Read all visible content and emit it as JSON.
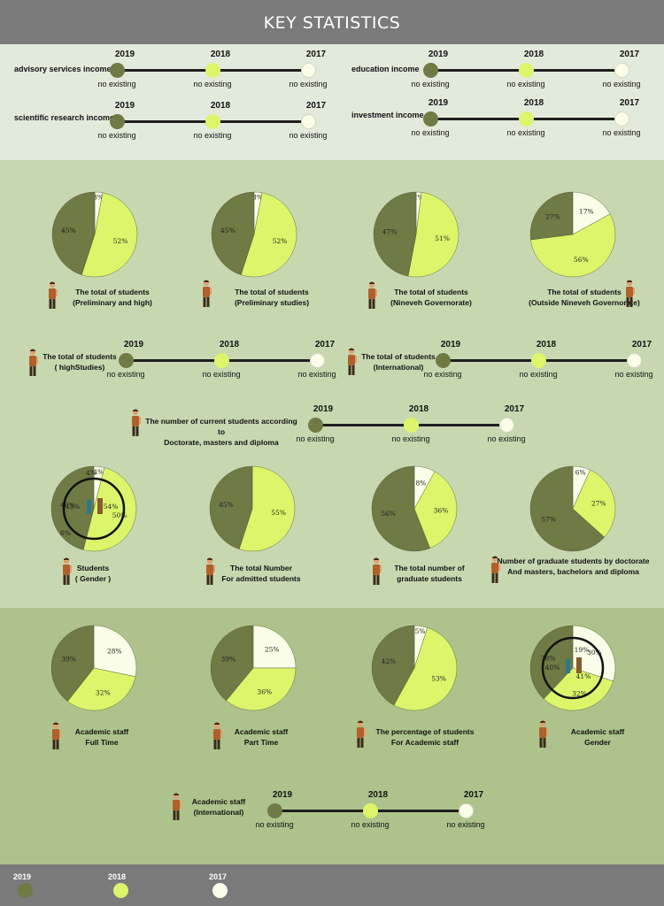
{
  "header": {
    "title": "KEY STATISTICS"
  },
  "colors": {
    "y2019": "#6f7a45",
    "y2018": "#dcf56a",
    "y2017": "#fafde8"
  },
  "years": [
    "2019",
    "2018",
    "2017"
  ],
  "timelines": [
    {
      "label": "advisory services income",
      "values": [
        "no existing",
        "no existing",
        "no existing"
      ]
    },
    {
      "label": "education income",
      "values": [
        "no existing",
        "no existing",
        "no existing"
      ]
    },
    {
      "label": "scientific research income",
      "values": [
        "no existing",
        "no existing",
        "no existing"
      ]
    },
    {
      "label": "investment income",
      "values": [
        "no existing",
        "no existing",
        "no existing"
      ]
    },
    {
      "label": "The total of students\n( highStudies)",
      "values": [
        "no existing",
        "no existing",
        "no existing"
      ]
    },
    {
      "label": "The total of students\n(International)",
      "values": [
        "no existing",
        "no existing",
        "no existing"
      ]
    },
    {
      "label": "The number of current students according to\nDoctorate, masters and diploma",
      "values": [
        "no existing",
        "no existing",
        "no existing"
      ]
    },
    {
      "label": "Academic staff\n(International)",
      "values": [
        "no existing",
        "no existing",
        "no existing"
      ]
    }
  ],
  "legend": [
    {
      "label": "2019",
      "color": "#6f7a45"
    },
    {
      "label": "2018",
      "color": "#dcf56a"
    },
    {
      "label": "2017",
      "color": "#fafde8"
    }
  ],
  "chart_data": [
    {
      "type": "pie",
      "title": "The total of students\n(Preliminary and high)",
      "slices": [
        {
          "year": "2017",
          "value": 3
        },
        {
          "year": "2018",
          "value": 52
        },
        {
          "year": "2019",
          "value": 45
        }
      ]
    },
    {
      "type": "pie",
      "title": "The total of students\n(Preliminary studies)",
      "slices": [
        {
          "year": "2017",
          "value": 3
        },
        {
          "year": "2018",
          "value": 52
        },
        {
          "year": "2019",
          "value": 45
        }
      ]
    },
    {
      "type": "pie",
      "title": "The total of students\n(Nineveh Governorate)",
      "slices": [
        {
          "year": "2017",
          "value": 2
        },
        {
          "year": "2018",
          "value": 51
        },
        {
          "year": "2019",
          "value": 47
        }
      ]
    },
    {
      "type": "pie",
      "title": "The total of students\n(Outside Nineveh Governorate)",
      "slices": [
        {
          "year": "2017",
          "value": 17
        },
        {
          "year": "2018",
          "value": 56
        },
        {
          "year": "2019",
          "value": 27
        }
      ]
    },
    {
      "type": "pie",
      "title": "Students\n( Gender )",
      "slices": [
        {
          "year": "2017",
          "value": 4
        },
        {
          "year": "2018",
          "value": 50
        },
        {
          "year": "2019",
          "value": 46
        }
      ],
      "inner_labels": [
        "43%",
        "54%",
        "4%"
      ],
      "outer_extra": "6%"
    },
    {
      "type": "pie",
      "title": "The total Number\nFor admitted students",
      "slices": [
        {
          "year": "2018",
          "value": 55
        },
        {
          "year": "2019",
          "value": 45
        }
      ]
    },
    {
      "type": "pie",
      "title": "The total number of\ngraduate students",
      "slices": [
        {
          "year": "2017",
          "value": 8
        },
        {
          "year": "2018",
          "value": 36
        },
        {
          "year": "2019",
          "value": 56
        }
      ]
    },
    {
      "type": "pie",
      "title": "Number of graduate students by doctorate\nAnd masters, bachelors and diploma",
      "slices": [
        {
          "year": "2017",
          "value": 6
        },
        {
          "year": "2018",
          "value": 27
        },
        {
          "year": "2019",
          "value": 57
        }
      ]
    },
    {
      "type": "pie",
      "title": "Academic staff\nFull Time",
      "slices": [
        {
          "year": "2017",
          "value": 28
        },
        {
          "year": "2018",
          "value": 32
        },
        {
          "year": "2019",
          "value": 39
        }
      ]
    },
    {
      "type": "pie",
      "title": "Academic staff\nPart Time",
      "slices": [
        {
          "year": "2017",
          "value": 25
        },
        {
          "year": "2018",
          "value": 36
        },
        {
          "year": "2019",
          "value": 39
        }
      ]
    },
    {
      "type": "pie",
      "title": "The percentage of students\nFor Academic staff",
      "slices": [
        {
          "year": "2017",
          "value": 5
        },
        {
          "year": "2018",
          "value": 53
        },
        {
          "year": "2019",
          "value": 42
        }
      ]
    },
    {
      "type": "pie",
      "title": "Academic staff\nGender",
      "slices": [
        {
          "year": "2017",
          "value": 30
        },
        {
          "year": "2018",
          "value": 32
        },
        {
          "year": "2019",
          "value": 38
        }
      ],
      "inner_labels": [
        "40%",
        "41%",
        "19%"
      ]
    }
  ]
}
